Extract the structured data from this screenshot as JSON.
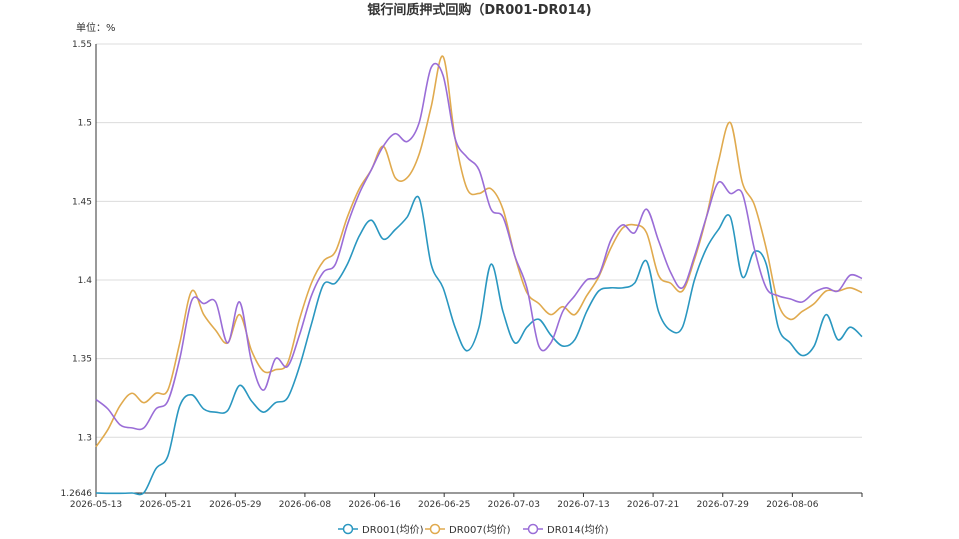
{
  "chart_data": {
    "type": "line",
    "title": "银行间质押式回购（DR001-DR014)",
    "unit_label": "单位：%",
    "xlabel": "",
    "ylabel": "",
    "ylim": [
      1.2646,
      1.55
    ],
    "y_ticks": [
      "1.2646",
      "1.3",
      "1.35",
      "1.4",
      "1.45",
      "1.5",
      "1.55"
    ],
    "x_tick_labels": [
      "2026-05-13",
      "2026-05-21",
      "2026-05-29",
      "2026-06-08",
      "2026-06-16",
      "2026-06-25",
      "2026-07-03",
      "2026-07-13",
      "2026-07-21",
      "2026-07-29",
      "2026-08-06"
    ],
    "grid": true,
    "legend_position": "bottom",
    "series": [
      {
        "name": "DR001(均价)",
        "color": "#2a97c0",
        "values": [
          1.2646,
          1.2644,
          1.2644,
          1.2646,
          1.2648,
          1.28,
          1.288,
          1.32,
          1.327,
          1.318,
          1.316,
          1.317,
          1.333,
          1.323,
          1.316,
          1.322,
          1.325,
          1.345,
          1.372,
          1.397,
          1.398,
          1.41,
          1.428,
          1.438,
          1.426,
          1.432,
          1.44,
          1.452,
          1.41,
          1.395,
          1.37,
          1.355,
          1.37,
          1.41,
          1.38,
          1.36,
          1.37,
          1.375,
          1.365,
          1.358,
          1.362,
          1.38,
          1.393,
          1.395,
          1.395,
          1.398,
          1.412,
          1.38,
          1.368,
          1.37,
          1.4,
          1.42,
          1.432,
          1.44,
          1.402,
          1.418,
          1.41,
          1.37,
          1.36,
          1.352,
          1.358,
          1.378,
          1.362,
          1.37,
          1.364
        ]
      },
      {
        "name": "DR007(均价)",
        "color": "#e0aa4e",
        "values": [
          1.294,
          1.305,
          1.32,
          1.328,
          1.322,
          1.328,
          1.33,
          1.36,
          1.393,
          1.378,
          1.368,
          1.36,
          1.378,
          1.355,
          1.342,
          1.343,
          1.347,
          1.375,
          1.398,
          1.412,
          1.418,
          1.44,
          1.458,
          1.47,
          1.485,
          1.465,
          1.465,
          1.48,
          1.51,
          1.542,
          1.49,
          1.458,
          1.455,
          1.458,
          1.445,
          1.415,
          1.392,
          1.385,
          1.378,
          1.383,
          1.378,
          1.39,
          1.402,
          1.42,
          1.433,
          1.435,
          1.43,
          1.403,
          1.398,
          1.393,
          1.413,
          1.44,
          1.475,
          1.5,
          1.462,
          1.448,
          1.42,
          1.385,
          1.375,
          1.38,
          1.385,
          1.393,
          1.393,
          1.395,
          1.392
        ]
      },
      {
        "name": "DR014(均价)",
        "color": "#9a6dd7",
        "values": [
          1.324,
          1.318,
          1.308,
          1.306,
          1.306,
          1.318,
          1.323,
          1.35,
          1.387,
          1.385,
          1.386,
          1.36,
          1.386,
          1.348,
          1.33,
          1.35,
          1.345,
          1.365,
          1.39,
          1.405,
          1.41,
          1.435,
          1.455,
          1.47,
          1.485,
          1.493,
          1.488,
          1.5,
          1.535,
          1.53,
          1.49,
          1.478,
          1.47,
          1.445,
          1.44,
          1.415,
          1.395,
          1.358,
          1.36,
          1.38,
          1.39,
          1.4,
          1.403,
          1.425,
          1.435,
          1.43,
          1.445,
          1.425,
          1.405,
          1.395,
          1.415,
          1.44,
          1.462,
          1.455,
          1.455,
          1.42,
          1.395,
          1.39,
          1.388,
          1.386,
          1.392,
          1.395,
          1.393,
          1.403,
          1.401
        ]
      }
    ]
  }
}
